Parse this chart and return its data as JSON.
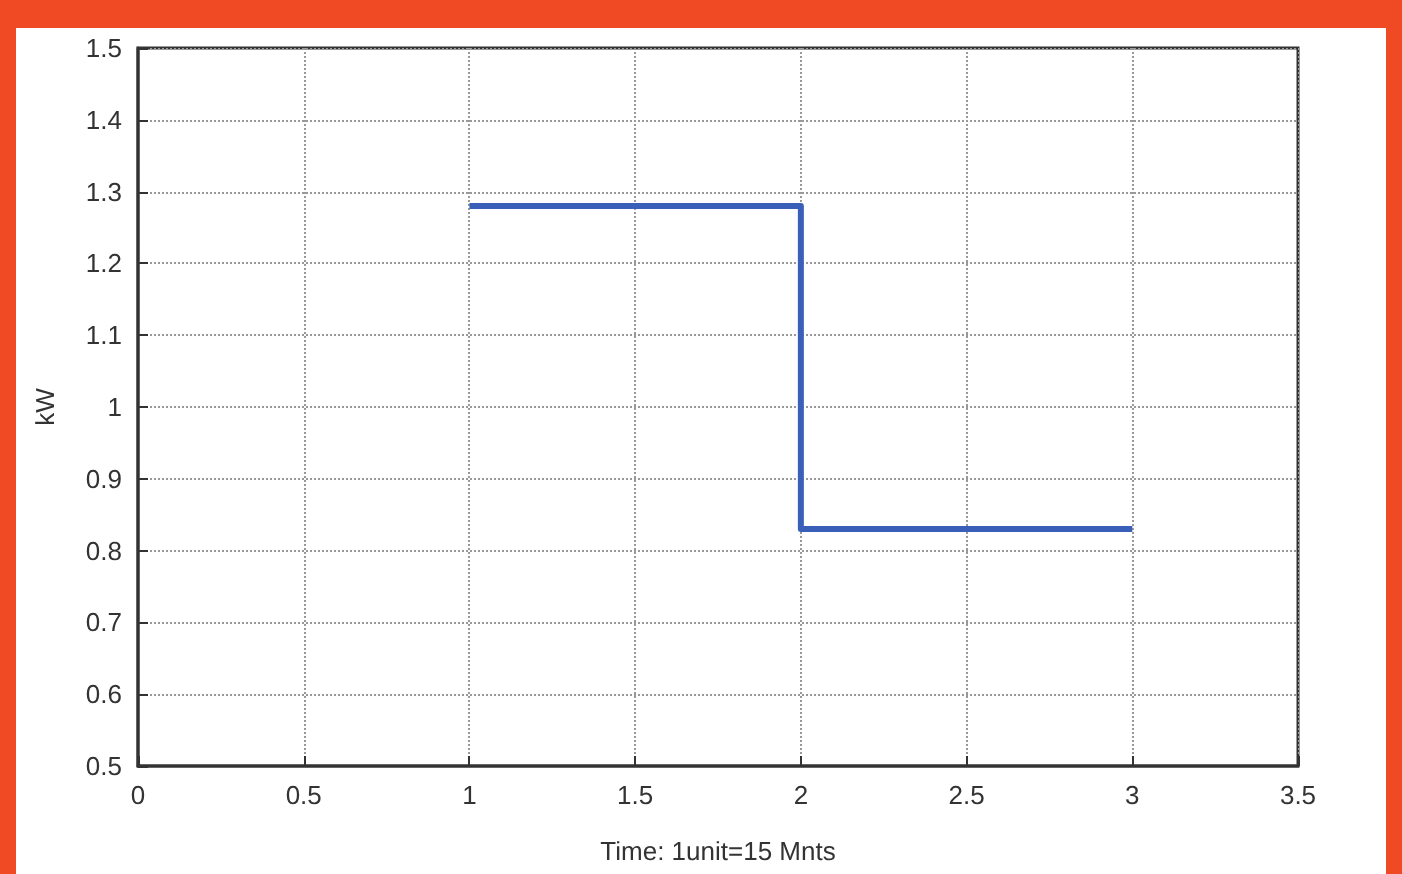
{
  "chart_data": {
    "type": "step",
    "xlabel": "Time: 1unit=15 Mnts",
    "ylabel": "kW",
    "x": [
      1,
      2,
      3
    ],
    "series": [
      {
        "color": "#3a5fb8",
        "values": [
          1.28,
          0.83,
          0.83
        ]
      }
    ],
    "xlim": [
      0,
      3.5
    ],
    "xticks": [
      0,
      0.5,
      1,
      1.5,
      2,
      2.5,
      3,
      3.5
    ],
    "ylim": [
      0.5,
      1.5
    ],
    "yticks": [
      0.5,
      0.6,
      0.7,
      0.8,
      0.9,
      1,
      1.1,
      1.2,
      1.3,
      1.4,
      1.5
    ],
    "grid": true,
    "marker": "none",
    "line_style": "solid"
  }
}
